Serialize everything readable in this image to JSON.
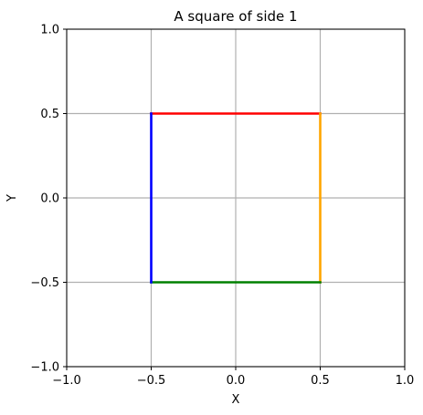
{
  "chart_data": {
    "type": "line",
    "title": "A square of side 1",
    "xlabel": "X",
    "ylabel": "Y",
    "xlim": [
      -1.0,
      1.0
    ],
    "ylim": [
      -1.0,
      1.0
    ],
    "x_ticks": [
      -1.0,
      -0.5,
      0.0,
      0.5,
      1.0
    ],
    "y_ticks": [
      -1.0,
      -0.5,
      0.0,
      0.5,
      1.0
    ],
    "x_tick_labels": [
      "−1.0",
      "−0.5",
      "0.0",
      "0.5",
      "1.0"
    ],
    "y_tick_labels": [
      "−1.0",
      "−0.5",
      "0.0",
      "0.5",
      "1.0"
    ],
    "grid": true,
    "aspect": "equal",
    "series": [
      {
        "color": "#ff0000",
        "x": [
          -0.5,
          0.5
        ],
        "y": [
          0.5,
          0.5
        ]
      },
      {
        "color": "#ffa500",
        "x": [
          0.5,
          0.5
        ],
        "y": [
          0.5,
          -0.5
        ]
      },
      {
        "color": "#008000",
        "x": [
          0.5,
          -0.5
        ],
        "y": [
          -0.5,
          -0.5
        ]
      },
      {
        "color": "#0000ff",
        "x": [
          -0.5,
          -0.5
        ],
        "y": [
          -0.5,
          0.5
        ]
      }
    ]
  }
}
